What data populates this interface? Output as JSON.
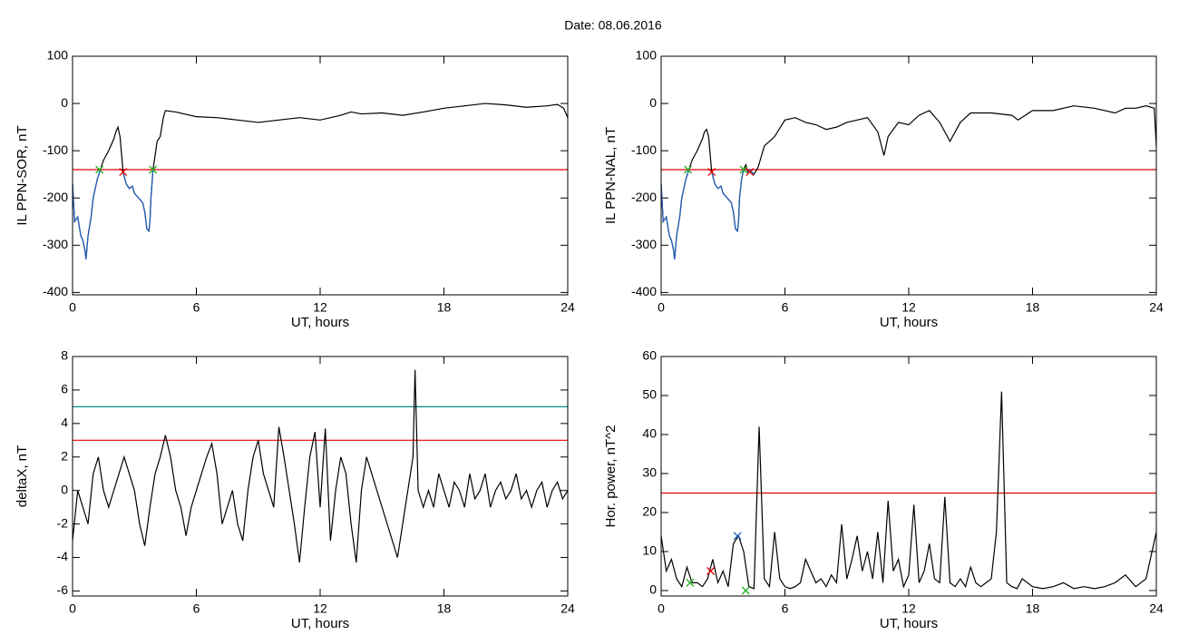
{
  "title": "Date:  08.06.2016",
  "chart_data": [
    {
      "type": "line",
      "xlabel": "UT, hours",
      "ylabel": "IL PPN-SOR, nT",
      "xlim": [
        0,
        24
      ],
      "xticks": [
        0,
        6,
        12,
        18,
        24
      ],
      "ylim": [
        -405,
        100
      ],
      "yticks": [
        -400,
        -300,
        -200,
        -100,
        0,
        100
      ],
      "hlines": [
        {
          "value": -140,
          "color": "#e00000"
        }
      ],
      "series": [
        {
          "color": "#000000",
          "x": [
            0,
            0.1,
            0.25,
            0.4,
            0.5,
            0.6,
            0.65,
            0.75,
            0.9,
            1.0,
            1.2,
            1.35,
            1.5,
            1.75,
            2.0,
            2.1,
            2.2,
            2.3,
            2.4,
            2.45,
            2.6,
            2.75,
            2.9,
            3.0,
            3.2,
            3.4,
            3.5,
            3.6,
            3.7,
            3.75,
            3.8,
            3.9,
            4.1,
            4.25,
            4.4,
            4.5,
            5,
            6,
            7,
            8,
            9,
            10,
            11,
            12,
            13,
            13.5,
            14,
            15,
            16,
            17,
            18,
            19,
            20,
            21,
            22,
            23,
            23.5,
            23.8,
            24
          ],
          "values": [
            -170,
            -250,
            -240,
            -280,
            -290,
            -310,
            -330,
            -280,
            -240,
            -200,
            -160,
            -140,
            -120,
            -100,
            -75,
            -60,
            -50,
            -70,
            -120,
            -145,
            -170,
            -180,
            -175,
            -190,
            -200,
            -210,
            -230,
            -265,
            -270,
            -250,
            -200,
            -140,
            -80,
            -70,
            -30,
            -15,
            -18,
            -28,
            -30,
            -35,
            -40,
            -35,
            -30,
            -35,
            -25,
            -18,
            -22,
            -20,
            -25,
            -18,
            -10,
            -5,
            0,
            -3,
            -8,
            -5,
            -2,
            -10,
            -30
          ]
        },
        {
          "color": "#1f5fbf",
          "x": [
            0,
            0.1,
            0.25,
            0.4,
            0.5,
            0.6,
            0.65,
            0.75,
            0.9,
            1.0,
            1.2,
            1.35,
            1.5,
            1.75,
            2.0,
            2.1,
            2.2,
            2.3,
            2.4,
            2.45,
            2.6,
            2.75,
            2.9,
            3.0,
            3.2,
            3.4,
            3.5,
            3.6,
            3.7,
            3.75,
            3.8,
            3.9
          ],
          "values": [
            -170,
            -250,
            -240,
            -280,
            -290,
            -310,
            -330,
            -280,
            -240,
            -200,
            -160,
            -140,
            null,
            null,
            null,
            null,
            null,
            null,
            null,
            -145,
            -170,
            -180,
            -175,
            -190,
            -200,
            -210,
            -230,
            -265,
            -270,
            -250,
            -200,
            -140
          ]
        }
      ],
      "markers": [
        {
          "x": 1.3,
          "y": -140,
          "color": "#20b020"
        },
        {
          "x": 2.45,
          "y": -145,
          "color": "#e00000"
        },
        {
          "x": 3.9,
          "y": -140,
          "color": "#20b020"
        }
      ]
    },
    {
      "type": "line",
      "xlabel": "UT, hours",
      "ylabel": "IL PPN-NAL, nT",
      "xlim": [
        0,
        24
      ],
      "xticks": [
        0,
        6,
        12,
        18,
        24
      ],
      "ylim": [
        -405,
        100
      ],
      "yticks": [
        -400,
        -300,
        -200,
        -100,
        0,
        100
      ],
      "hlines": [
        {
          "value": -140,
          "color": "#e00000"
        }
      ],
      "series": [
        {
          "color": "#000000",
          "x": [
            0,
            0.1,
            0.25,
            0.4,
            0.5,
            0.6,
            0.65,
            0.75,
            0.9,
            1.0,
            1.2,
            1.35,
            1.5,
            1.75,
            2.0,
            2.1,
            2.2,
            2.3,
            2.4,
            2.45,
            2.6,
            2.75,
            2.9,
            3.0,
            3.2,
            3.4,
            3.5,
            3.6,
            3.7,
            3.75,
            3.8,
            3.9,
            4.0,
            4.1,
            4.2,
            4.3,
            4.5,
            4.7,
            5,
            5.5,
            6,
            6.5,
            7,
            7.5,
            8,
            8.5,
            9,
            9.5,
            10,
            10.5,
            10.8,
            11,
            11.5,
            12,
            12.5,
            13,
            13.5,
            14,
            14.5,
            15,
            16,
            17,
            17.3,
            18,
            19,
            20,
            21,
            22,
            22.5,
            23,
            23.5,
            23.9,
            24
          ],
          "values": [
            -170,
            -250,
            -240,
            -280,
            -290,
            -310,
            -330,
            -280,
            -240,
            -200,
            -160,
            -140,
            -120,
            -100,
            -75,
            -60,
            -55,
            -70,
            -120,
            -145,
            -170,
            -180,
            -175,
            -190,
            -200,
            -210,
            -230,
            -265,
            -270,
            -250,
            -200,
            -160,
            -140,
            -130,
            -145,
            -140,
            -150,
            -135,
            -90,
            -70,
            -35,
            -30,
            -40,
            -45,
            -55,
            -50,
            -40,
            -35,
            -30,
            -60,
            -110,
            -70,
            -40,
            -45,
            -25,
            -15,
            -40,
            -80,
            -40,
            -20,
            -20,
            -25,
            -35,
            -15,
            -15,
            -5,
            -10,
            -20,
            -10,
            -10,
            -5,
            -10,
            -90
          ]
        },
        {
          "color": "#1f5fbf",
          "x": [
            0,
            0.1,
            0.25,
            0.4,
            0.5,
            0.6,
            0.65,
            0.75,
            0.9,
            1.0,
            1.2,
            1.35,
            1.5,
            1.75,
            2.0,
            2.1,
            2.2,
            2.3,
            2.4,
            2.45,
            2.6,
            2.75,
            2.9,
            3.0,
            3.2,
            3.4,
            3.5,
            3.6,
            3.7,
            3.75,
            3.8,
            3.9,
            4.0,
            4.1,
            4.2,
            4.3,
            4.5,
            4.7
          ],
          "values": [
            -170,
            -250,
            -240,
            -280,
            -290,
            -310,
            -330,
            -280,
            -240,
            -200,
            -160,
            -140,
            null,
            null,
            null,
            null,
            null,
            null,
            null,
            -145,
            -170,
            -180,
            -175,
            -190,
            -200,
            -210,
            -230,
            -265,
            -270,
            -250,
            -200,
            -160,
            -140,
            null,
            -145,
            -140,
            -150,
            null
          ]
        }
      ],
      "markers": [
        {
          "x": 1.3,
          "y": -140,
          "color": "#20b020"
        },
        {
          "x": 2.45,
          "y": -145,
          "color": "#e00000"
        },
        {
          "x": 4.0,
          "y": -140,
          "color": "#20b020"
        },
        {
          "x": 4.3,
          "y": -145,
          "color": "#e00000"
        }
      ]
    },
    {
      "type": "line",
      "xlabel": "UT, hours",
      "ylabel": "deltaX, nT",
      "xlim": [
        0,
        24
      ],
      "xticks": [
        0,
        6,
        12,
        18,
        24
      ],
      "ylim": [
        -6.3,
        8
      ],
      "yticks": [
        -6,
        -4,
        -2,
        0,
        2,
        4,
        6,
        8
      ],
      "hlines": [
        {
          "value": 5,
          "color": "#008b8b"
        },
        {
          "value": 3,
          "color": "#e00000"
        }
      ],
      "series": [
        {
          "color": "#000000",
          "x": [
            0,
            0.25,
            0.5,
            0.75,
            1,
            1.25,
            1.5,
            1.75,
            2,
            2.25,
            2.5,
            2.75,
            3,
            3.25,
            3.5,
            3.75,
            4,
            4.25,
            4.5,
            4.75,
            5,
            5.25,
            5.5,
            5.75,
            6,
            6.25,
            6.5,
            6.75,
            7,
            7.25,
            7.5,
            7.75,
            8,
            8.25,
            8.5,
            8.75,
            9,
            9.25,
            9.5,
            9.75,
            10,
            10.25,
            10.5,
            10.75,
            11,
            11.25,
            11.5,
            11.75,
            12,
            12.25,
            12.5,
            12.75,
            13,
            13.25,
            13.5,
            13.75,
            14,
            14.25,
            14.5,
            14.75,
            15,
            15.25,
            15.5,
            15.75,
            16,
            16.25,
            16.5,
            16.6,
            16.75,
            17,
            17.25,
            17.5,
            17.75,
            18,
            18.25,
            18.5,
            18.75,
            19,
            19.25,
            19.5,
            19.75,
            20,
            20.25,
            20.5,
            20.75,
            21,
            21.25,
            21.5,
            21.75,
            22,
            22.25,
            22.5,
            22.75,
            23,
            23.25,
            23.5,
            23.75,
            24
          ],
          "values": [
            -3,
            0,
            -1,
            -2,
            1,
            2,
            0,
            -1,
            0,
            1,
            2,
            1,
            0,
            -2,
            -3.3,
            -1,
            1,
            2,
            3.3,
            2,
            0,
            -1,
            -2.7,
            -1,
            0,
            1,
            2,
            2.8,
            1,
            -2,
            -1,
            0,
            -2,
            -3,
            0,
            2,
            3,
            1,
            0,
            -1,
            3.8,
            2,
            0,
            -2,
            -4.3,
            -1,
            2,
            3.5,
            -1,
            3.7,
            -3,
            0,
            2,
            1,
            -2,
            -4.3,
            0,
            2,
            1,
            0,
            -1,
            -2,
            -3,
            -4,
            -2,
            0,
            2,
            7.2,
            0,
            -1,
            0,
            -1,
            1,
            0,
            -1,
            0.5,
            0,
            -1,
            1,
            -0.5,
            0,
            1,
            -1,
            0,
            0.5,
            -0.5,
            0,
            1,
            -0.5,
            0,
            -1,
            0,
            0.5,
            -1,
            0,
            0.5,
            -0.5,
            0
          ]
        }
      ],
      "markers": []
    },
    {
      "type": "line",
      "xlabel": "UT, hours",
      "ylabel": "Hor. power, nT^2",
      "xlim": [
        0,
        24
      ],
      "xticks": [
        0,
        6,
        12,
        18,
        24
      ],
      "ylim": [
        -1.4,
        60
      ],
      "yticks": [
        0,
        10,
        20,
        30,
        40,
        50,
        60
      ],
      "hlines": [
        {
          "value": 25,
          "color": "#e00000"
        }
      ],
      "series": [
        {
          "color": "#000000",
          "x": [
            0,
            0.25,
            0.5,
            0.75,
            1,
            1.25,
            1.5,
            1.75,
            2,
            2.25,
            2.5,
            2.75,
            3,
            3.25,
            3.5,
            3.75,
            4,
            4.25,
            4.5,
            4.75,
            5,
            5.25,
            5.5,
            5.75,
            6,
            6.25,
            6.5,
            6.75,
            7,
            7.25,
            7.5,
            7.75,
            8,
            8.25,
            8.5,
            8.75,
            9,
            9.25,
            9.5,
            9.75,
            10,
            10.25,
            10.5,
            10.75,
            11,
            11.25,
            11.5,
            11.75,
            12,
            12.25,
            12.5,
            12.75,
            13,
            13.25,
            13.5,
            13.75,
            14,
            14.25,
            14.5,
            14.75,
            15,
            15.25,
            15.5,
            15.75,
            16,
            16.25,
            16.5,
            16.75,
            17,
            17.25,
            17.5,
            18,
            18.5,
            19,
            19.5,
            20,
            20.5,
            21,
            21.5,
            22,
            22.5,
            23,
            23.5,
            24
          ],
          "values": [
            14,
            5,
            8,
            3,
            1,
            6,
            2,
            2,
            1,
            3,
            8,
            2,
            5,
            1,
            12,
            14,
            10,
            1,
            0.5,
            42,
            3,
            1,
            15,
            3,
            1,
            0.5,
            1,
            2,
            8,
            5,
            2,
            3,
            1,
            4,
            2,
            17,
            3,
            8,
            14,
            5,
            10,
            3,
            15,
            2,
            23,
            5,
            8,
            1,
            4,
            22,
            2,
            5,
            12,
            3,
            2,
            24,
            2,
            1,
            3,
            1,
            6,
            2,
            1,
            2,
            3,
            15,
            51,
            2,
            1,
            0.5,
            3,
            1,
            0.5,
            1,
            2,
            0.5,
            1,
            0.5,
            1,
            2,
            4,
            1,
            3,
            15
          ]
        }
      ],
      "markers": [
        {
          "x": 1.4,
          "y": 2,
          "color": "#20b020"
        },
        {
          "x": 2.4,
          "y": 5,
          "color": "#e00000"
        },
        {
          "x": 3.7,
          "y": 14,
          "color": "#1f5fbf"
        },
        {
          "x": 4.1,
          "y": 0,
          "color": "#20b020"
        }
      ]
    }
  ]
}
